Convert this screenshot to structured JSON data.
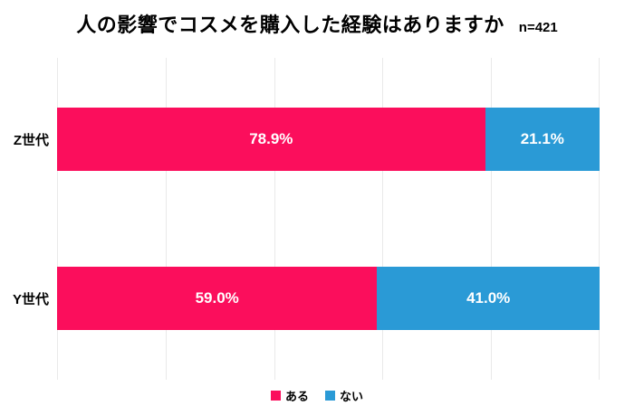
{
  "title": "人の影響でコスメを購入した経験はありますか",
  "sample_size_label": "n=421",
  "colors": {
    "aru": "#FB0E5C",
    "nai": "#2A9AD6",
    "gridline": "#e9e9e9",
    "value_label_text": "#ffffff"
  },
  "legend": {
    "items": [
      {
        "label": "ある",
        "color": "#FB0E5C"
      },
      {
        "label": "ない",
        "color": "#2A9AD6"
      }
    ],
    "position": "bottom"
  },
  "chart_data": {
    "type": "bar",
    "orientation": "horizontal",
    "stacked": true,
    "title": "人の影響でコスメを購入した経験はありますか",
    "annotation": "n=421",
    "categories": [
      "Z世代",
      "Y世代"
    ],
    "series": [
      {
        "name": "ある",
        "color": "#FB0E5C",
        "values": [
          78.9,
          59.0
        ]
      },
      {
        "name": "ない",
        "color": "#2A9AD6",
        "values": [
          21.1,
          41.0
        ]
      }
    ],
    "value_labels": [
      [
        "78.9%",
        "21.1%"
      ],
      [
        "59.0%",
        "41.0%"
      ]
    ],
    "xlim": [
      0,
      100
    ],
    "gridlines_percent": [
      0,
      20,
      40,
      60,
      80,
      100
    ],
    "grid": true,
    "legend_position": "bottom"
  }
}
